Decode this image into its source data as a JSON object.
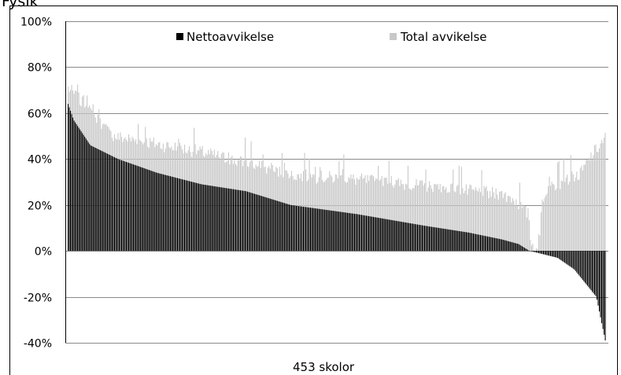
{
  "figure": {
    "top_label": "Fysik"
  },
  "chart_data": {
    "type": "bar",
    "title": "",
    "xlabel": "453 skolor",
    "ylabel": "",
    "ylim": [
      -40,
      100
    ],
    "y_unit": "%",
    "y_ticks": [
      "100%",
      "80%",
      "60%",
      "40%",
      "20%",
      "0%",
      "-20%",
      "-40%"
    ],
    "y_tick_values": [
      100,
      80,
      60,
      40,
      20,
      0,
      -20,
      -40
    ],
    "grid": true,
    "legend_placement": "top",
    "n_bars": 453,
    "series": [
      {
        "name": "Nettoavvikelse",
        "color": "#000000",
        "description_points": [
          [
            0,
            64
          ],
          [
            5,
            57
          ],
          [
            20,
            46
          ],
          [
            45,
            40
          ],
          [
            80,
            34
          ],
          [
            120,
            29
          ],
          [
            160,
            26
          ],
          [
            180,
            23
          ],
          [
            200,
            20
          ],
          [
            260,
            16
          ],
          [
            320,
            11
          ],
          [
            360,
            8
          ],
          [
            390,
            5
          ],
          [
            405,
            3
          ],
          [
            415,
            0
          ],
          [
            440,
            -3
          ],
          [
            455,
            -8
          ],
          [
            465,
            -14
          ],
          [
            475,
            -20
          ],
          [
            480,
            -32
          ],
          [
            483,
            -39
          ]
        ],
        "sorted": "descending"
      },
      {
        "name": "Total avvikelse",
        "color": "#c8c8c8",
        "description_points": [
          [
            0,
            68
          ],
          [
            40,
            47
          ],
          [
            120,
            40
          ],
          [
            200,
            30
          ],
          [
            260,
            28
          ],
          [
            320,
            25
          ],
          [
            380,
            22
          ],
          [
            400,
            20
          ],
          [
            415,
            12
          ],
          [
            420,
            0
          ],
          [
            430,
            24
          ],
          [
            445,
            27
          ],
          [
            460,
            30
          ],
          [
            470,
            38
          ],
          [
            483,
            46
          ]
        ],
        "typical_spikes": [
          55,
          53,
          45,
          44,
          41,
          40,
          38,
          42,
          36,
          35
        ]
      }
    ]
  }
}
